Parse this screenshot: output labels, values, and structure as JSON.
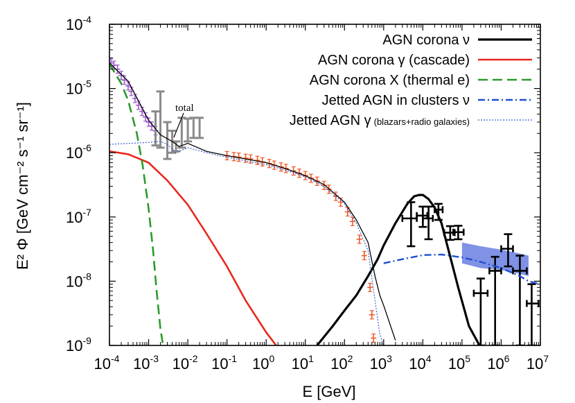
{
  "chart_data": {
    "type": "line",
    "title": "",
    "xlabel": "E [GeV]",
    "ylabel": "E² Φ [GeV cm⁻² s⁻¹ sr⁻¹]",
    "xscale": "log",
    "yscale": "log",
    "xlim": [
      0.0001,
      10000000
    ],
    "ylim": [
      1e-09,
      0.0001
    ],
    "x_ticks": [
      {
        "base": "10",
        "exp": "-4"
      },
      {
        "base": "10",
        "exp": "-3"
      },
      {
        "base": "10",
        "exp": "-2"
      },
      {
        "base": "10",
        "exp": "-1"
      },
      {
        "base": "10",
        "exp": "0"
      },
      {
        "base": "10",
        "exp": "1"
      },
      {
        "base": "10",
        "exp": "2"
      },
      {
        "base": "10",
        "exp": "3"
      },
      {
        "base": "10",
        "exp": "4"
      },
      {
        "base": "10",
        "exp": "5"
      },
      {
        "base": "10",
        "exp": "6"
      },
      {
        "base": "10",
        "exp": "7"
      }
    ],
    "y_ticks": [
      {
        "base": "10",
        "exp": "-9"
      },
      {
        "base": "10",
        "exp": "-8"
      },
      {
        "base": "10",
        "exp": "-7"
      },
      {
        "base": "10",
        "exp": "-6"
      },
      {
        "base": "10",
        "exp": "-5"
      },
      {
        "base": "10",
        "exp": "-4"
      }
    ],
    "legend_position": "top-right",
    "annotation": "total",
    "series": [
      {
        "name": "AGN corona ν",
        "label_main": "AGN corona ν",
        "label_small": "",
        "color": "#000000",
        "style": "solid-thick",
        "x": [
          20,
          50,
          100,
          200,
          400,
          700,
          1000,
          2000,
          4000,
          6000,
          8000,
          10000,
          14000,
          20000,
          30000,
          50000,
          80000,
          150000,
          280000
        ],
        "y": [
          1e-09,
          2e-09,
          3.5e-09,
          6e-09,
          1.2e-08,
          2.2e-08,
          3.6e-08,
          8e-08,
          1.6e-07,
          2.1e-07,
          2.2e-07,
          2.2e-07,
          1.9e-07,
          1.4e-07,
          8e-08,
          2.4e-08,
          8e-09,
          2e-09,
          1e-09
        ]
      },
      {
        "name": "AGN corona γ (cascade)",
        "label_main": "AGN corona γ (cascade)",
        "label_small": "",
        "color": "#e8281e",
        "style": "solid",
        "x": [
          0.0001,
          0.0003,
          0.001,
          0.003,
          0.01,
          0.03,
          0.1,
          0.3,
          1,
          1.8
        ],
        "y": [
          1.05e-06,
          9.5e-07,
          7e-07,
          3.7e-07,
          1.55e-07,
          5.5e-08,
          1.7e-08,
          5e-09,
          1.6e-09,
          1e-09
        ]
      },
      {
        "name": "AGN corona X (thermal e)",
        "label_main": "AGN corona X (thermal e)",
        "label_small": "",
        "color": "#2a9a2a",
        "style": "dashed",
        "x": [
          0.0001,
          0.0002,
          0.0003,
          0.0005,
          0.0007,
          0.001,
          0.0013,
          0.0016,
          0.002,
          0.0024
        ],
        "y": [
          2.4e-05,
          1.2e-05,
          6.5e-06,
          2e-06,
          6.5e-07,
          1.35e-07,
          3e-08,
          7e-09,
          1.8e-09,
          9e-10
        ]
      },
      {
        "name": "Jetted AGN in clusters ν",
        "label_main": "Jetted AGN in clusters ν",
        "label_small": "",
        "color": "#1f4fd0",
        "style": "dashdot",
        "x": [
          1000,
          3000,
          10000,
          30000,
          100000,
          300000,
          1000000,
          3000000,
          5000000,
          10000000
        ],
        "y": [
          1.9e-08,
          2.2e-08,
          2.55e-08,
          2.6e-08,
          2.35e-08,
          2e-08,
          1.6e-08,
          1.2e-08,
          1e-08,
          9e-09
        ]
      },
      {
        "name": "Jetted AGN γ (blazars+radio galaxies)",
        "label_main": "Jetted AGN γ",
        "label_small": "(blazars+radio galaxies)",
        "color": "#3a5fd0",
        "style": "dotted",
        "x": [
          0.0001,
          0.001,
          0.002,
          0.003,
          0.005,
          0.01,
          0.03,
          0.1,
          1,
          3,
          10,
          30,
          100,
          200,
          400,
          600,
          800,
          1000
        ],
        "y": [
          1.35e-06,
          1.45e-06,
          1.5e-06,
          1.35e-06,
          1e-06,
          1.2e-06,
          1e-06,
          8.5e-07,
          6.5e-07,
          5.4e-07,
          4.2e-07,
          3e-07,
          1.6e-07,
          8e-08,
          3e-08,
          5e-09,
          1.5e-09,
          1e-09
        ]
      }
    ],
    "total_curve": {
      "name": "total",
      "color": "#000000",
      "x": [
        0.0001,
        0.0003,
        0.001,
        0.002,
        0.004,
        0.006,
        0.01,
        0.03,
        0.1,
        1,
        3,
        10,
        30,
        100,
        200,
        400,
        600,
        800,
        1000,
        2000
      ],
      "y": [
        2.5e-05,
        1.3e-05,
        3.2e-06,
        1.9e-06,
        1.5e-06,
        1.25e-06,
        1.4e-06,
        1.05e-06,
        9e-07,
        7e-07,
        5.7e-07,
        4.4e-07,
        3.2e-07,
        1.7e-07,
        9e-08,
        4e-08,
        1.2e-08,
        6e-09,
        4.2e-09,
        1.2e-09
      ]
    },
    "data_sets": [
      {
        "name": "X-ray data (purple)",
        "color": "#9b59c9",
        "x": [
          0.00011,
          0.00013,
          0.00016,
          0.0002,
          0.00024,
          0.0003,
          0.00036,
          0.00045,
          0.00055,
          0.00068,
          0.00083,
          0.001,
          0.0012,
          0.0015
        ],
        "y": [
          2.5e-05,
          2.3e-05,
          2e-05,
          1.6e-05,
          1.35e-05,
          1.1e-05,
          9e-06,
          7e-06,
          5.5e-06,
          4.4e-06,
          3.6e-06,
          3e-06,
          2.6e-06,
          2.2e-06
        ]
      },
      {
        "name": "MeV data (grey)",
        "color": "#8a8a8a",
        "x": [
          0.0015,
          0.002,
          0.003,
          0.004,
          0.005,
          0.007,
          0.01,
          0.014,
          0.02
        ],
        "y": [
          2.5e-06,
          3.2e-06,
          1.6e-06,
          1.5e-06,
          1.25e-06,
          2.2e-06,
          2.4e-06,
          2.5e-06,
          2.6e-06
        ],
        "ylo": [
          1.3e-06,
          1.2e-06,
          8e-07,
          1e-06,
          1.05e-06,
          1.2e-06,
          1.5e-06,
          1.7e-06,
          1.7e-06
        ],
        "yhi": [
          4.4e-06,
          9e-06,
          3e-06,
          2.2e-06,
          1.5e-06,
          3.5e-06,
          3.4e-06,
          3.5e-06,
          3.5e-06
        ]
      },
      {
        "name": "Fermi-LAT data (orange)",
        "color": "#ee5a28",
        "x": [
          0.1,
          0.15,
          0.2,
          0.3,
          0.4,
          0.6,
          0.8,
          1.2,
          1.6,
          2.4,
          3.2,
          5,
          7,
          10,
          14,
          20,
          30,
          40,
          60,
          80,
          120,
          160,
          240,
          320,
          450,
          500,
          550
        ],
        "y": [
          9e-07,
          8.7e-07,
          8.5e-07,
          8.2e-07,
          8e-07,
          7.6e-07,
          7.2e-07,
          6.8e-07,
          6.4e-07,
          6e-07,
          5.7e-07,
          5.2e-07,
          4.8e-07,
          4.4e-07,
          4e-07,
          3.6e-07,
          3.1e-07,
          2.7e-07,
          2.1e-07,
          1.7e-07,
          1.2e-07,
          8.5e-08,
          4.5e-08,
          2.5e-08,
          8e-09,
          3e-09,
          1.3e-09
        ]
      },
      {
        "name": "IceCube neutrino data (black)",
        "color": "#000000",
        "x": [
          5000,
          10000,
          14000,
          25000,
          50000,
          80000,
          300000,
          700000,
          1500000,
          3000000,
          6000000
        ],
        "y": [
          9.5e-08,
          1.05e-07,
          9.5e-08,
          1.3e-07,
          5.7e-08,
          5.8e-08,
          6.5e-09,
          1.45e-08,
          3.2e-08,
          1.45e-08,
          4.5e-09
        ],
        "xlo": [
          3000,
          7000,
          10000,
          20000,
          35000,
          60000,
          200000,
          500000,
          1000000,
          2000000,
          4500000
        ],
        "xhi": [
          7000,
          13000,
          18000,
          32000,
          65000,
          110000,
          450000,
          1000000,
          2000000,
          4500000,
          9000000
        ],
        "ylo": [
          3.5e-08,
          7e-08,
          4.5e-08,
          9e-08,
          4.4e-08,
          4.5e-08,
          1e-09,
          1e-09,
          1.7e-08,
          1e-09,
          1e-09
        ],
        "yhi": [
          1.7e-07,
          1.45e-07,
          1.45e-07,
          1.6e-07,
          7.2e-08,
          7.3e-08,
          1.1e-08,
          2.4e-08,
          5.4e-08,
          2.5e-08,
          9e-09
        ]
      }
    ],
    "band": {
      "name": "IceCube band",
      "color": "#7f92e6",
      "x": [
        100000,
        300000,
        1000000,
        3000000,
        5000000
      ],
      "ylo": [
        1.9e-08,
        1.6e-08,
        1.5e-08,
        1.3e-08,
        1.2e-08
      ],
      "yhi": [
        4e-08,
        3.5e-08,
        3.1e-08,
        2.7e-08,
        2.5e-08
      ]
    }
  }
}
